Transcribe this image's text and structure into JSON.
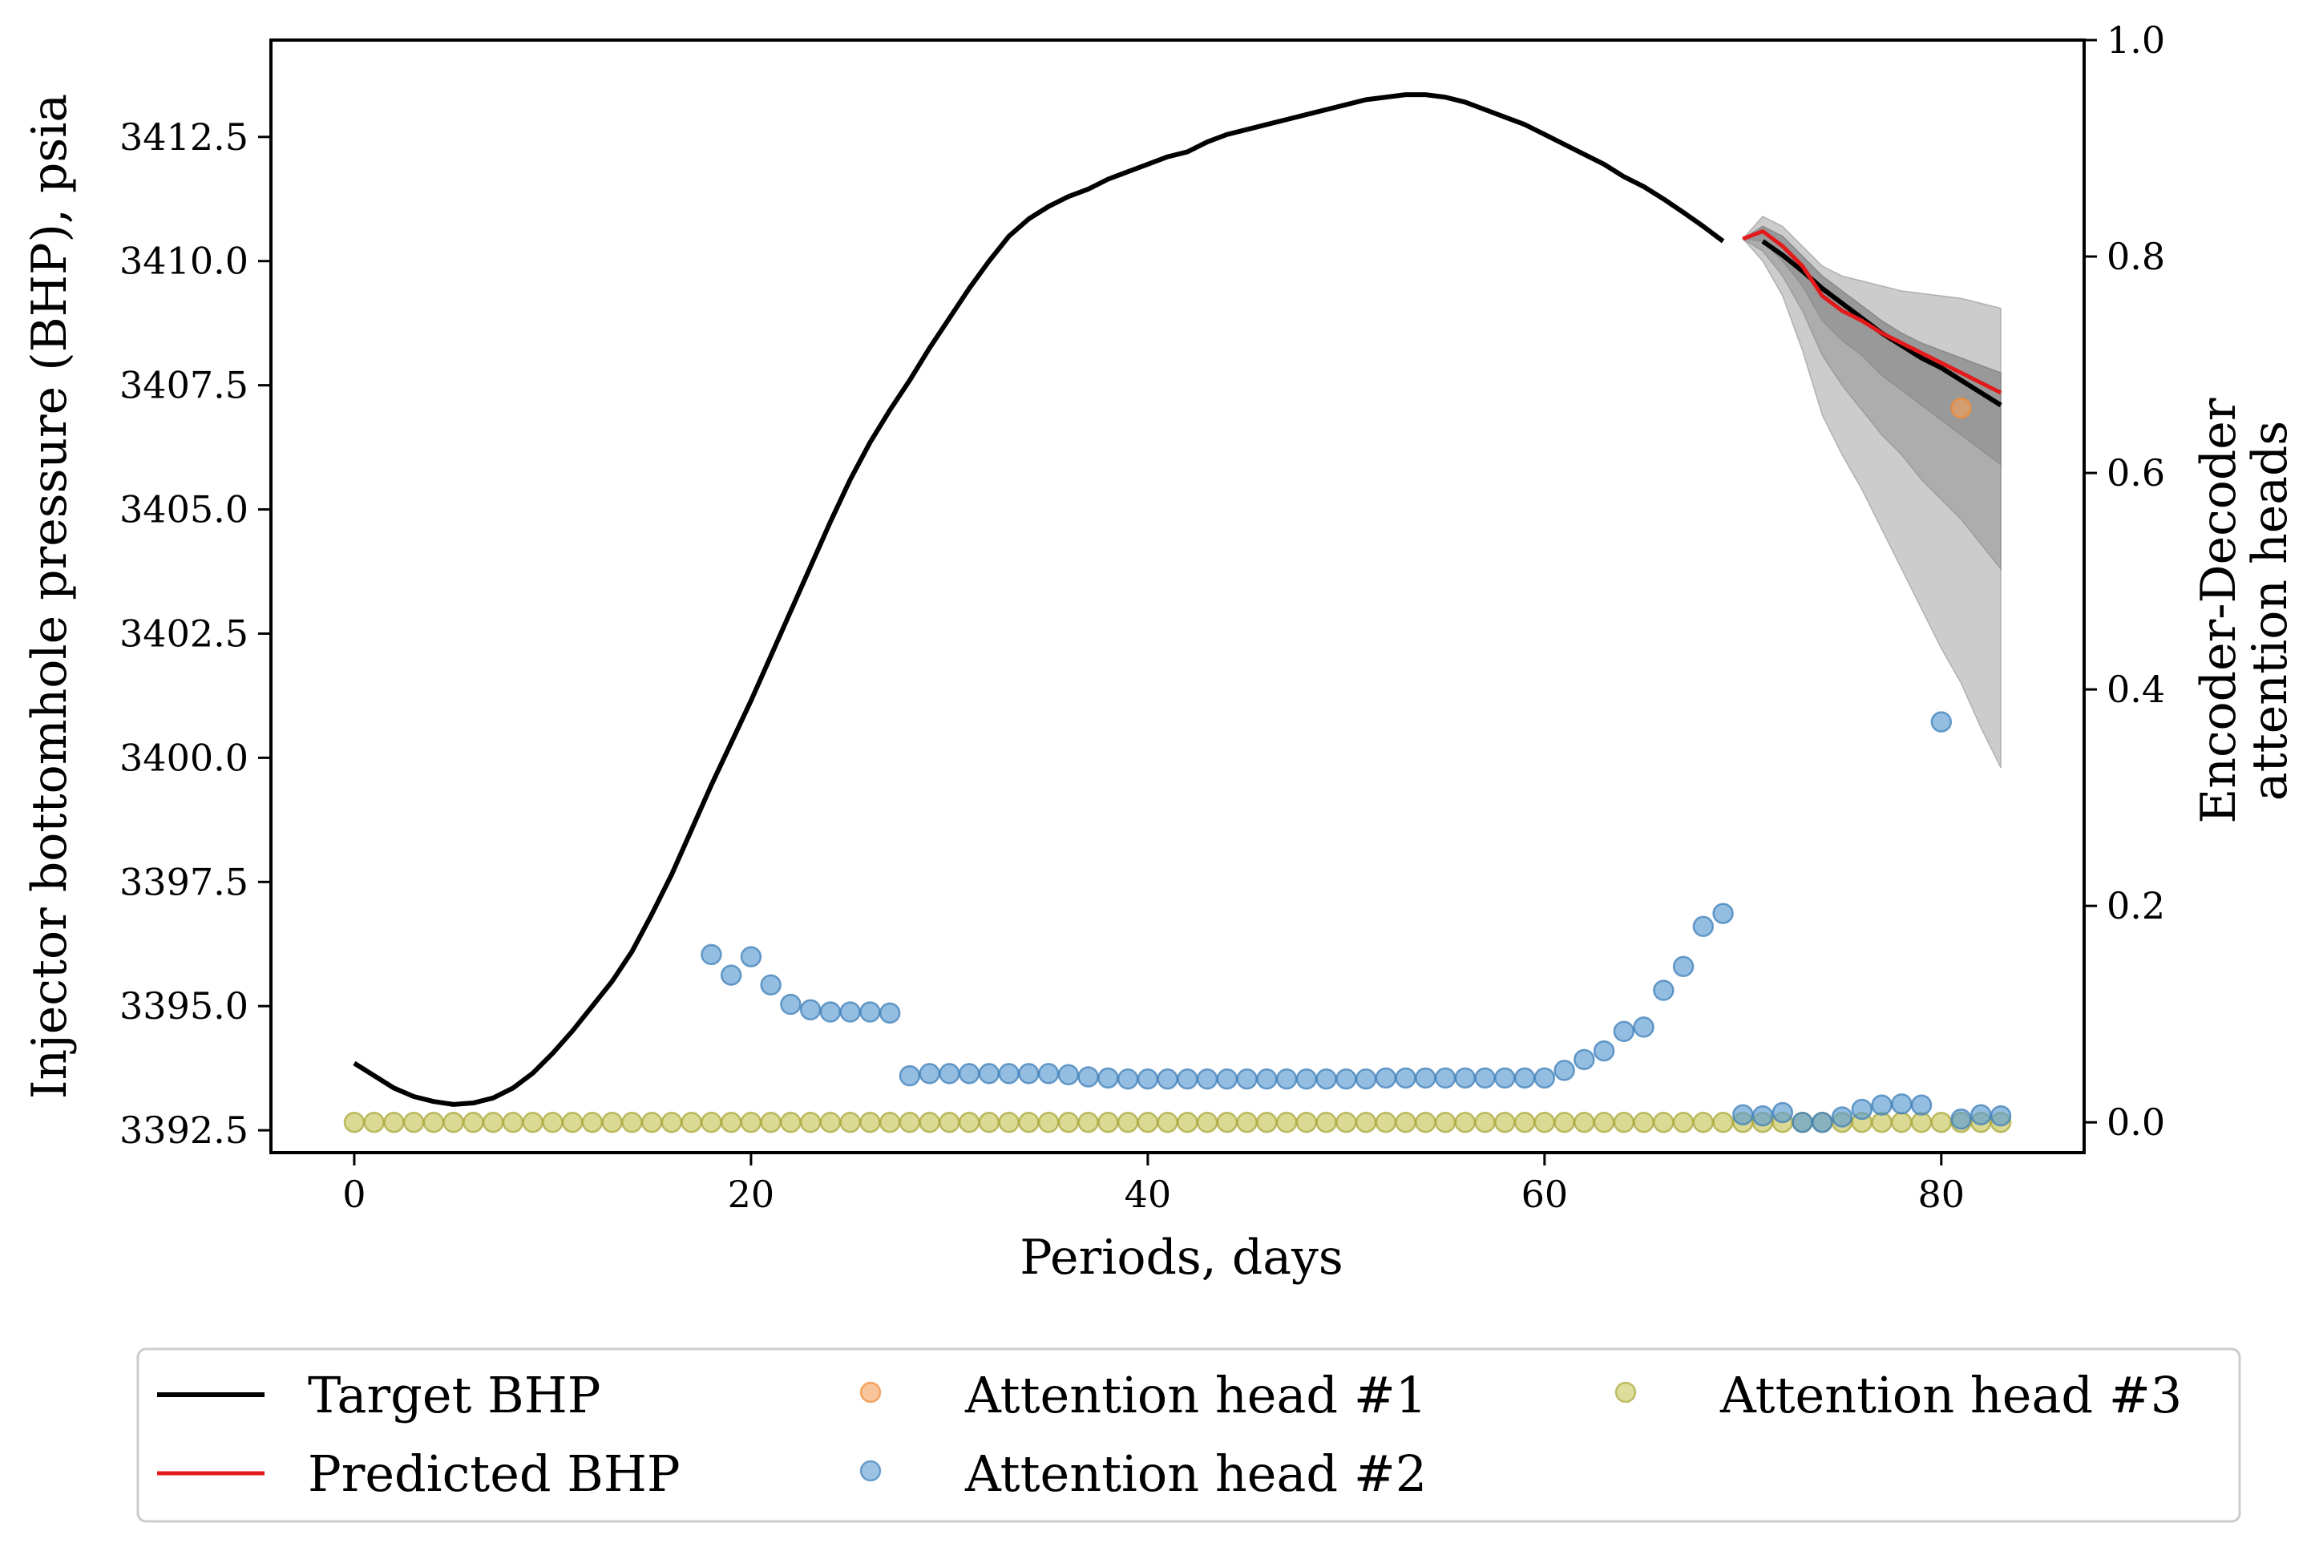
{
  "chart_data": {
    "type": "line",
    "xlabel": "Periods, days",
    "ylabel": "Injector bottomhole pressure (BHP), psia",
    "y2label": [
      "Encoder-Decoder",
      "attention heads"
    ],
    "xlim": [
      -4.2,
      87.2
    ],
    "ylim": [
      3392.05,
      3414.45
    ],
    "y2lim": [
      -0.028,
      1.0
    ],
    "xticks": [
      0,
      20,
      40,
      60,
      80
    ],
    "yticks": [
      3392.5,
      3395.0,
      3397.5,
      3400.0,
      3402.5,
      3405.0,
      3407.5,
      3410.0,
      3412.5
    ],
    "ytick_labels": [
      "3392.5",
      "3395.0",
      "3397.5",
      "3400.0",
      "3402.5",
      "3405.0",
      "3407.5",
      "3410.0",
      "3412.5"
    ],
    "y2ticks": [
      0.0,
      0.2,
      0.4,
      0.6,
      0.8,
      1.0
    ],
    "y2tick_labels": [
      "0.0",
      "0.2",
      "0.4",
      "0.6",
      "0.8",
      "1.0"
    ],
    "grid": false,
    "legend_position": "bottom-outside",
    "colors": {
      "target": "#000000",
      "predicted": "#e31a1c",
      "head1": "#f5a05a",
      "head2": "#5b9bd1",
      "head3": "#c8c65a",
      "band": "#808080"
    },
    "series": [
      {
        "name": "Target BHP",
        "kind": "line",
        "x": [
          0,
          1,
          2,
          3,
          4,
          5,
          6,
          7,
          8,
          9,
          10,
          11,
          12,
          13,
          14,
          15,
          16,
          17,
          18,
          19,
          20,
          21,
          22,
          23,
          24,
          25,
          26,
          27,
          28,
          29,
          30,
          31,
          32,
          33,
          34,
          35,
          36,
          37,
          38,
          39,
          40,
          41,
          42,
          43,
          44,
          45,
          46,
          47,
          48,
          49,
          50,
          51,
          52,
          53,
          54,
          55,
          56,
          57,
          58,
          59,
          60,
          61,
          62,
          63,
          64,
          65,
          66,
          67,
          68,
          69
        ],
        "y": [
          3393.85,
          3393.6,
          3393.35,
          3393.18,
          3393.08,
          3393.02,
          3393.05,
          3393.15,
          3393.35,
          3393.65,
          3394.05,
          3394.5,
          3395.0,
          3395.5,
          3396.1,
          3396.85,
          3397.65,
          3398.55,
          3399.45,
          3400.3,
          3401.15,
          3402.05,
          3402.95,
          3403.85,
          3404.75,
          3405.6,
          3406.35,
          3407.0,
          3407.6,
          3408.25,
          3408.85,
          3409.45,
          3410.0,
          3410.5,
          3410.85,
          3411.1,
          3411.3,
          3411.45,
          3411.65,
          3411.8,
          3411.95,
          3412.1,
          3412.2,
          3412.4,
          3412.55,
          3412.65,
          3412.75,
          3412.85,
          3412.95,
          3413.05,
          3413.15,
          3413.25,
          3413.3,
          3413.35,
          3413.35,
          3413.3,
          3413.2,
          3413.05,
          3412.9,
          3412.75,
          3412.55,
          3412.35,
          3412.15,
          3411.95,
          3411.7,
          3411.5,
          3411.25,
          3410.98,
          3410.7,
          3410.4
        ]
      },
      {
        "name": "Target BHP",
        "kind": "line",
        "x": [
          71,
          72,
          73,
          74,
          75,
          76,
          77,
          78,
          79,
          80,
          81,
          82,
          83
        ],
        "y": [
          3410.4,
          3410.12,
          3409.8,
          3409.45,
          3409.15,
          3408.85,
          3408.55,
          3408.3,
          3408.05,
          3407.85,
          3407.6,
          3407.35,
          3407.1
        ]
      },
      {
        "name": "Predicted BHP",
        "kind": "line",
        "x": [
          70,
          71,
          72,
          73,
          74,
          75,
          76,
          77,
          78,
          79,
          80,
          81,
          82,
          83
        ],
        "y": [
          3410.45,
          3410.6,
          3410.3,
          3409.9,
          3409.3,
          3409.0,
          3408.8,
          3408.55,
          3408.35,
          3408.15,
          3407.95,
          3407.75,
          3407.55,
          3407.35
        ]
      },
      {
        "name": "Attention head #1",
        "kind": "scatter",
        "axis": "right",
        "x": [
          81
        ],
        "y": [
          0.66
        ]
      },
      {
        "name": "Attention head #2",
        "kind": "scatter",
        "axis": "right",
        "x": [
          18,
          19,
          20,
          21,
          22,
          23,
          24,
          25,
          26,
          27,
          28,
          29,
          30,
          31,
          32,
          33,
          34,
          35,
          36,
          37,
          38,
          39,
          40,
          41,
          42,
          43,
          44,
          45,
          46,
          47,
          48,
          49,
          50,
          51,
          52,
          53,
          54,
          55,
          56,
          57,
          58,
          59,
          60,
          61,
          62,
          63,
          64,
          65,
          66,
          67,
          68,
          69,
          70,
          71,
          72,
          73,
          74,
          75,
          76,
          77,
          78,
          79,
          80,
          81,
          82,
          83
        ],
        "y": [
          0.155,
          0.136,
          0.153,
          0.127,
          0.109,
          0.104,
          0.102,
          0.102,
          0.102,
          0.101,
          0.043,
          0.045,
          0.045,
          0.045,
          0.045,
          0.045,
          0.045,
          0.045,
          0.044,
          0.042,
          0.041,
          0.04,
          0.04,
          0.04,
          0.04,
          0.04,
          0.04,
          0.04,
          0.04,
          0.04,
          0.04,
          0.04,
          0.04,
          0.04,
          0.041,
          0.041,
          0.041,
          0.041,
          0.041,
          0.041,
          0.041,
          0.041,
          0.041,
          0.048,
          0.058,
          0.066,
          0.084,
          0.088,
          0.122,
          0.144,
          0.181,
          0.193,
          0.007,
          0.006,
          0.009,
          0.0,
          0.0,
          0.005,
          0.012,
          0.016,
          0.017,
          0.016,
          0.37,
          0.003,
          0.007,
          0.006
        ]
      },
      {
        "name": "Attention head #3",
        "kind": "scatter",
        "axis": "right",
        "x": [
          0,
          1,
          2,
          3,
          4,
          5,
          6,
          7,
          8,
          9,
          10,
          11,
          12,
          13,
          14,
          15,
          16,
          17,
          18,
          19,
          20,
          21,
          22,
          23,
          24,
          25,
          26,
          27,
          28,
          29,
          30,
          31,
          32,
          33,
          34,
          35,
          36,
          37,
          38,
          39,
          40,
          41,
          42,
          43,
          44,
          45,
          46,
          47,
          48,
          49,
          50,
          51,
          52,
          53,
          54,
          55,
          56,
          57,
          58,
          59,
          60,
          61,
          62,
          63,
          64,
          65,
          66,
          67,
          68,
          69,
          70,
          71,
          72,
          73,
          74,
          75,
          76,
          77,
          78,
          79,
          80,
          81,
          82,
          83
        ],
        "y": [
          0,
          0,
          0,
          0,
          0,
          0,
          0,
          0,
          0,
          0,
          0,
          0,
          0,
          0,
          0,
          0,
          0,
          0,
          0,
          0,
          0,
          0,
          0,
          0,
          0,
          0,
          0,
          0,
          0,
          0,
          0,
          0,
          0,
          0,
          0,
          0,
          0,
          0,
          0,
          0,
          0,
          0,
          0,
          0,
          0,
          0,
          0,
          0,
          0,
          0,
          0,
          0,
          0,
          0,
          0,
          0,
          0,
          0,
          0,
          0,
          0,
          0,
          0,
          0,
          0,
          0,
          0,
          0,
          0,
          0,
          0,
          0,
          0,
          0,
          0,
          0,
          0,
          0,
          0,
          0,
          0,
          0,
          0,
          0
        ]
      }
    ],
    "bands": {
      "x": [
        70,
        71,
        72,
        73,
        74,
        75,
        76,
        77,
        78,
        79,
        80,
        81,
        82,
        83
      ],
      "outer": {
        "lower": [
          3410.45,
          3410.0,
          3409.3,
          3408.2,
          3406.9,
          3406.1,
          3405.4,
          3404.6,
          3403.8,
          3403.0,
          3402.2,
          3401.5,
          3400.6,
          3399.8
        ],
        "upper": [
          3410.45,
          3410.9,
          3410.7,
          3410.3,
          3409.9,
          3409.7,
          3409.6,
          3409.5,
          3409.4,
          3409.35,
          3409.3,
          3409.25,
          3409.15,
          3409.05
        ]
      },
      "middle": {
        "lower": [
          3410.45,
          3410.2,
          3409.7,
          3409.0,
          3408.1,
          3407.5,
          3407.0,
          3406.5,
          3406.1,
          3405.6,
          3405.2,
          3404.8,
          3404.3,
          3403.8
        ]
      },
      "inner": {
        "lower": [
          3410.45,
          3410.4,
          3410.0,
          3409.5,
          3408.8,
          3408.4,
          3408.1,
          3407.7,
          3407.4,
          3407.1,
          3406.8,
          3406.5,
          3406.2,
          3405.9
        ],
        "upper": [
          3410.45,
          3410.7,
          3410.5,
          3410.1,
          3409.7,
          3409.4,
          3409.1,
          3408.8,
          3408.55,
          3408.35,
          3408.2,
          3408.05,
          3407.9,
          3407.75
        ]
      }
    },
    "legend": {
      "labels": [
        "Target BHP",
        "Predicted BHP",
        "Attention head #1",
        "Attention head #2",
        "Attention head #3"
      ]
    }
  }
}
